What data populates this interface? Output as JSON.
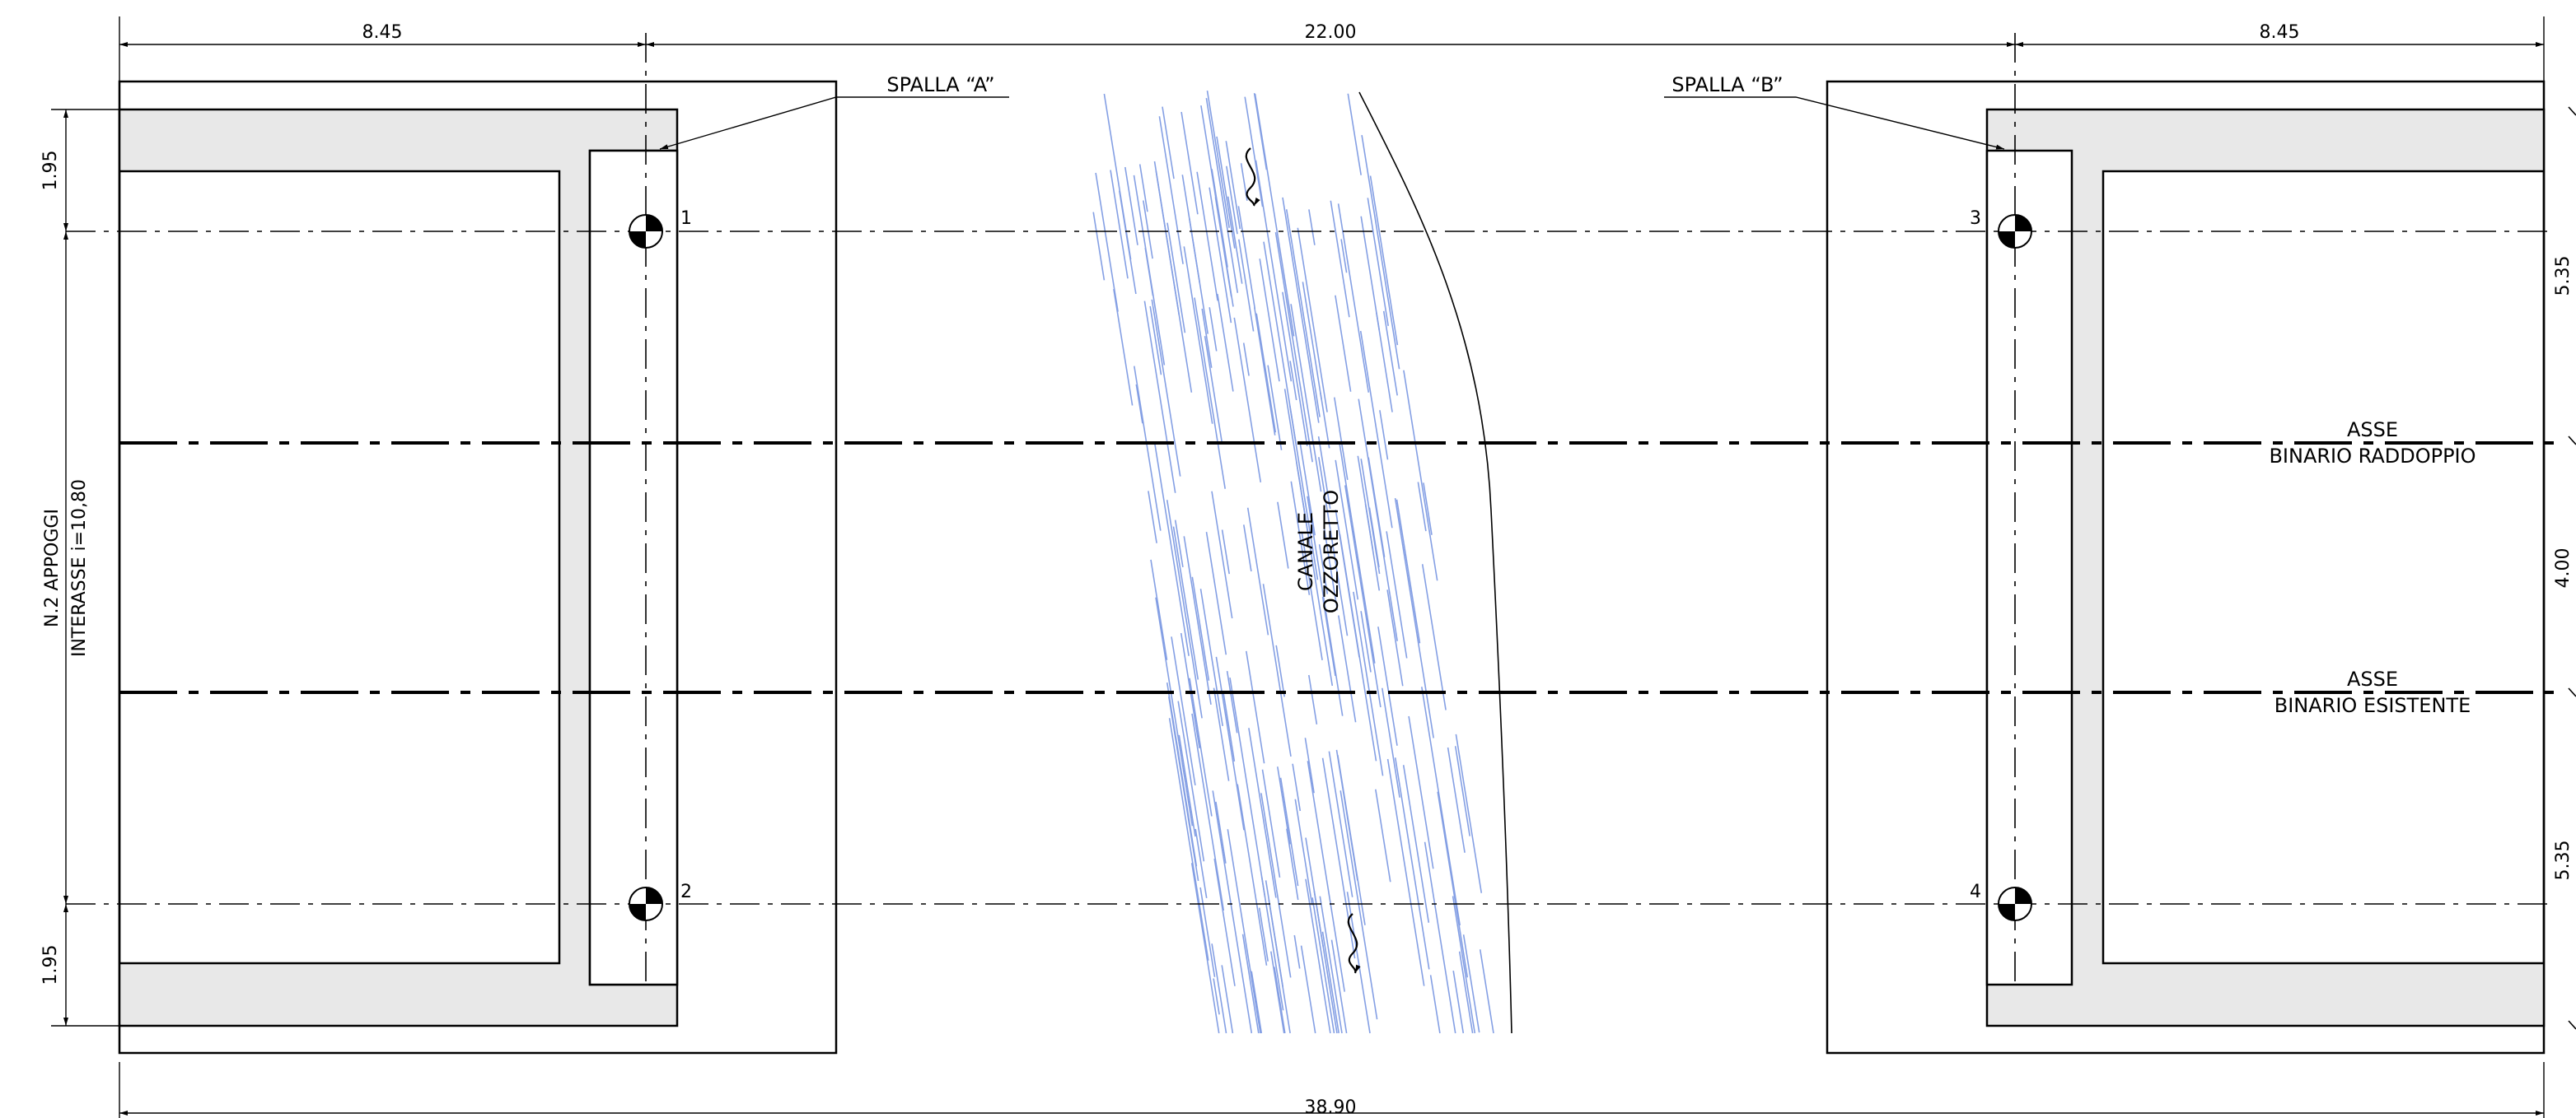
{
  "dimensions": {
    "top_left": "8.45",
    "top_mid": "22.00",
    "top_right": "8.45",
    "bottom_total": "38.90",
    "left_top": "1.95",
    "left_bottom": "1.95",
    "right_top": "5.35",
    "right_mid": "4.00",
    "right_bottom": "5.35"
  },
  "labels": {
    "spalla_a": "SPALLA “A”",
    "spalla_b": "SPALLA “B”",
    "appoggi_line1": "N.2 APPOGGI",
    "appoggi_line2": "INTERASSE i=10,80",
    "canale_line1": "CANALE",
    "canale_line2": "OZZORETTO",
    "asse_1": "ASSE",
    "binario_raddoppio": "BINARIO RADDOPPIO",
    "asse_2": "ASSE",
    "binario_esistente": "BINARIO ESISTENTE"
  },
  "bearings": {
    "b1": "1",
    "b2": "2",
    "b3": "3",
    "b4": "4"
  },
  "colors": {
    "line": "#000000",
    "abutment_fill": "#e8e8e8",
    "water": "#6f8fe0"
  }
}
